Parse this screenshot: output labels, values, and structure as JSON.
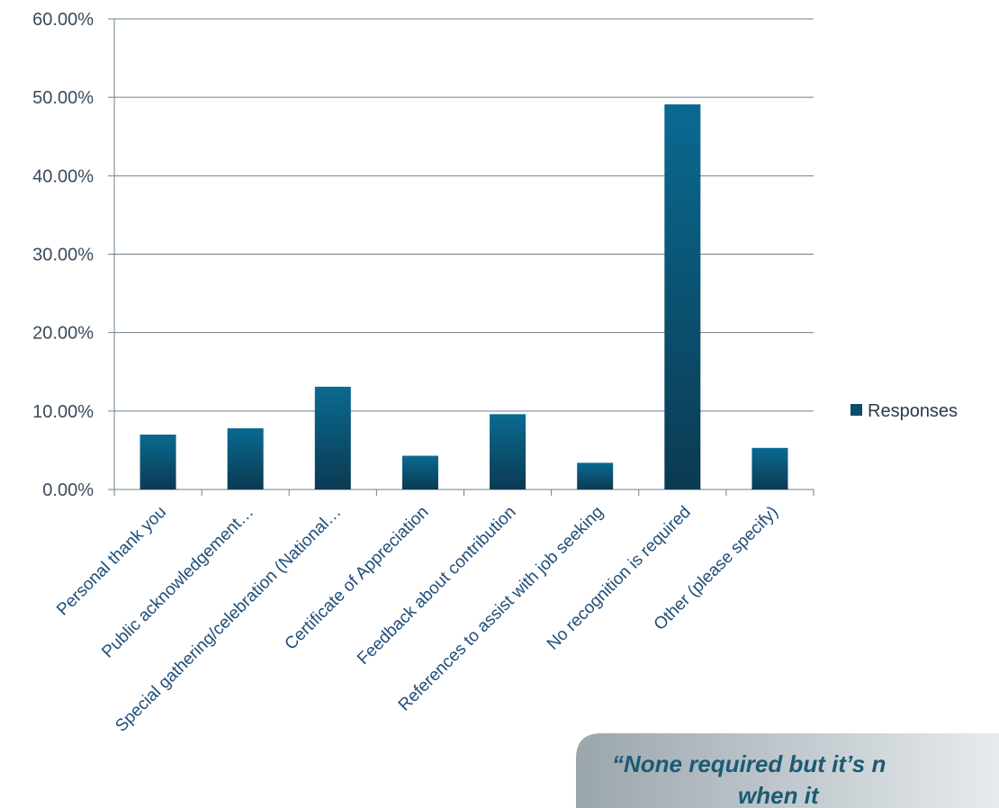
{
  "chart_data": {
    "type": "bar",
    "title": "",
    "xlabel": "",
    "ylabel": "",
    "ylim": [
      0,
      0.6
    ],
    "yticks": [
      "0.00%",
      "10.00%",
      "20.00%",
      "30.00%",
      "40.00%",
      "50.00%",
      "60.00%"
    ],
    "categories": [
      "Personal thank you",
      "Public acknowledgement…",
      "Special gathering/celebration (National…",
      "Certificate of Appreciation",
      "Feedback about contribution",
      "References to assist with job seeking",
      "No recognition is required",
      "Other (please specify)"
    ],
    "series": [
      {
        "name": "Responses",
        "values": [
          0.07,
          0.078,
          0.131,
          0.043,
          0.096,
          0.034,
          0.491,
          0.053
        ]
      }
    ],
    "grid": true,
    "legend_position": "right",
    "colors": {
      "bar_top": "#0a6a91",
      "bar_bottom": "#0b3a52",
      "grid": "#6e7f8d",
      "axis": "#6e7f8d",
      "legend_swatch": "#0b4d6b"
    }
  },
  "callout": {
    "lines": [
      "“None required but it’s n",
      "when it"
    ],
    "bg_left": "#9aa5ac",
    "bg_right": "#e6ebee"
  }
}
